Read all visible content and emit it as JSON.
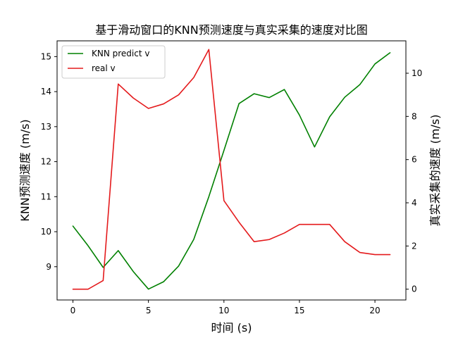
{
  "chart_data": {
    "type": "line",
    "title": "基于滑动窗口的KNN预测速度与真实采集的速度对比图",
    "xlabel": "时间 (s)",
    "ylabel_left": "KNN预测速度 (m/s)",
    "ylabel_right": "真实采集的速度 (m/s)",
    "x": [
      0,
      1,
      2,
      3,
      4,
      5,
      6,
      7,
      8,
      9,
      10,
      11,
      12,
      13,
      14,
      15,
      16,
      17,
      18,
      19,
      20,
      21
    ],
    "xlim": [
      -1.05,
      22.05
    ],
    "xticks": [
      0,
      5,
      10,
      15,
      20
    ],
    "ylim_left": [
      8.05,
      15.45
    ],
    "yticks_left": [
      9,
      10,
      11,
      12,
      13,
      14,
      15
    ],
    "ylim_right": [
      -0.5,
      11.5
    ],
    "yticks_right": [
      0,
      2,
      4,
      6,
      8,
      10
    ],
    "grid": false,
    "legend_position": "upper-left",
    "series": [
      {
        "name": "KNN predict v",
        "axis": "left",
        "color": "#008000",
        "values": [
          10.16,
          9.6,
          8.98,
          9.46,
          8.86,
          8.36,
          8.57,
          9.02,
          9.78,
          11.0,
          12.32,
          13.66,
          13.94,
          13.83,
          14.06,
          13.33,
          12.42,
          13.28,
          13.84,
          14.2,
          14.79,
          15.11
        ]
      },
      {
        "name": "real v",
        "axis": "right",
        "color": "#e41a1c",
        "values": [
          0.0,
          0.0,
          0.4,
          9.5,
          8.85,
          8.37,
          8.58,
          9.0,
          9.8,
          11.1,
          4.1,
          3.1,
          2.2,
          2.3,
          2.6,
          3.0,
          3.0,
          3.0,
          2.2,
          1.7,
          1.6,
          1.6
        ]
      }
    ]
  }
}
